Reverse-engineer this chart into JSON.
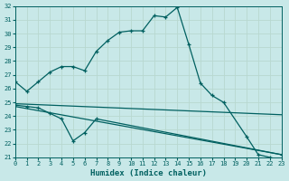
{
  "xlabel": "Humidex (Indice chaleur)",
  "bg_color": "#c8e8e8",
  "grid_color": "#d0e8e0",
  "line_color": "#006060",
  "ylim": [
    21,
    32
  ],
  "xlim": [
    0,
    23
  ],
  "yticks": [
    21,
    22,
    23,
    24,
    25,
    26,
    27,
    28,
    29,
    30,
    31,
    32
  ],
  "xticks": [
    0,
    1,
    2,
    3,
    4,
    5,
    6,
    7,
    8,
    9,
    10,
    11,
    12,
    13,
    14,
    15,
    16,
    17,
    18,
    19,
    20,
    21,
    22,
    23
  ],
  "series1_x": [
    0,
    1,
    2,
    3,
    4,
    5,
    6,
    7,
    8,
    9,
    10,
    11,
    12,
    13,
    14,
    15,
    16,
    17,
    18,
    20,
    21,
    22,
    23
  ],
  "series1_y": [
    26.5,
    25.8,
    26.5,
    27.2,
    27.6,
    27.6,
    27.3,
    28.7,
    29.5,
    30.1,
    30.2,
    30.2,
    31.3,
    31.2,
    31.9,
    29.2,
    26.4,
    25.5,
    25.0,
    22.5,
    21.2,
    21.0,
    20.8
  ],
  "series2_x": [
    0,
    1,
    2,
    3,
    4,
    5,
    6,
    7,
    23
  ],
  "series2_y": [
    24.8,
    24.7,
    24.6,
    24.2,
    23.8,
    22.2,
    22.8,
    23.8,
    21.2
  ],
  "series3_x": [
    0,
    23
  ],
  "series3_y": [
    24.9,
    24.1
  ],
  "series4_x": [
    0,
    23
  ],
  "series4_y": [
    24.7,
    21.2
  ]
}
